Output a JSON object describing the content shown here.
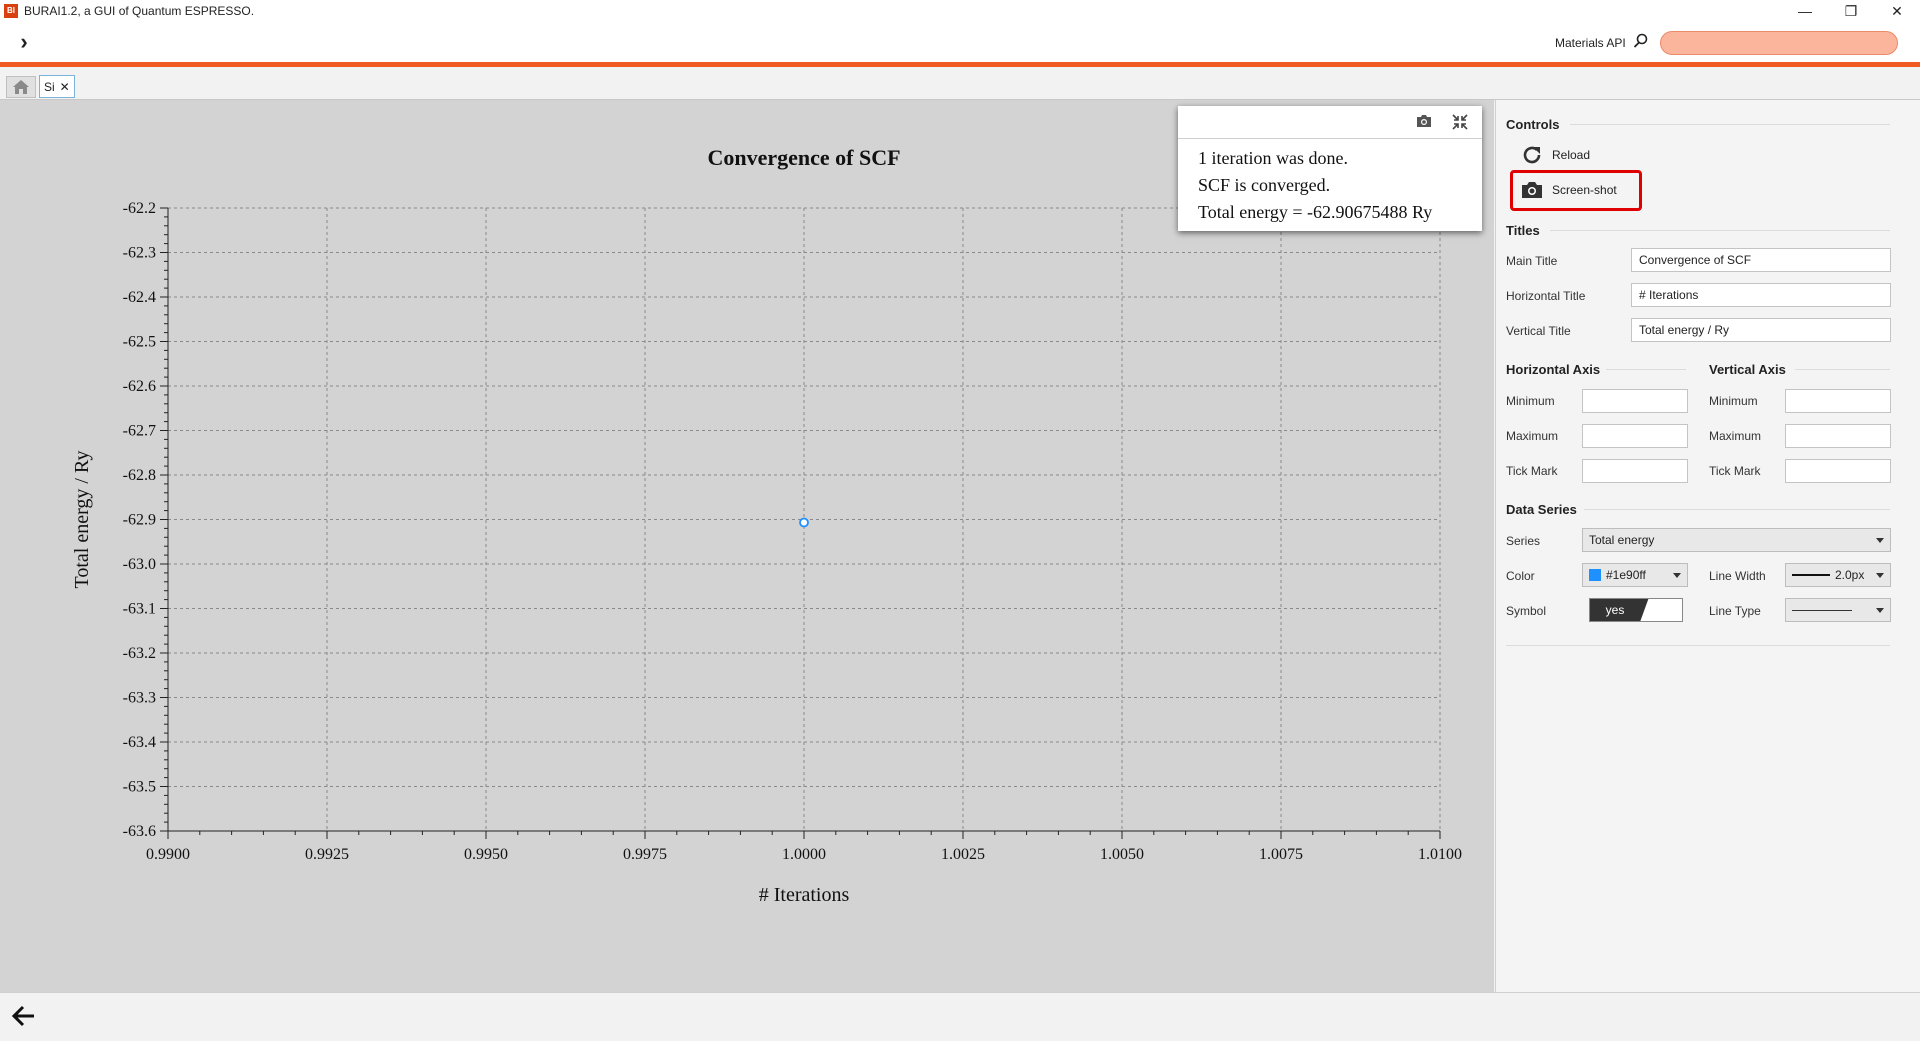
{
  "window": {
    "title": "BURAI1.2, a GUI of Quantum ESPRESSO.",
    "icon_text": "BI",
    "minimize": "—",
    "restore": "❐",
    "close": "✕"
  },
  "toolbar": {
    "toggle_glyph": "›",
    "materials_api_label": "Materials API",
    "materials_api_search_value": ""
  },
  "tabs": [
    {
      "label": "Si",
      "close": "✕"
    }
  ],
  "popup": {
    "lines": [
      "1 iteration was done.",
      "SCF is converged.",
      "Total energy = -62.90675488 Ry"
    ]
  },
  "chart_data": {
    "type": "scatter",
    "title": "Convergence of SCF",
    "xlabel": "# Iterations",
    "ylabel": "Total energy / Ry",
    "xlim": [
      0.99,
      1.01
    ],
    "ylim": [
      -63.6,
      -62.2
    ],
    "x_ticks": [
      "0.9900",
      "0.9925",
      "0.9950",
      "0.9975",
      "1.0000",
      "1.0025",
      "1.0050",
      "1.0075",
      "1.0100"
    ],
    "y_ticks": [
      "-62.2",
      "-62.3",
      "-62.4",
      "-62.5",
      "-62.6",
      "-62.7",
      "-62.8",
      "-62.9",
      "-63.0",
      "-63.1",
      "-63.2",
      "-63.3",
      "-63.4",
      "-63.5",
      "-63.6"
    ],
    "grid": true,
    "series": [
      {
        "name": "Total energy",
        "color": "#1e90ff",
        "points": [
          {
            "x": 1.0,
            "y": -62.90675488
          }
        ]
      }
    ]
  },
  "side": {
    "controls_title": "Controls",
    "reload_label": "Reload",
    "screenshot_label": "Screen-shot",
    "titles_title": "Titles",
    "main_title_label": "Main Title",
    "main_title_value": "Convergence of SCF",
    "horizontal_title_label": "Horizontal Title",
    "horizontal_title_value": "# Iterations",
    "vertical_title_label": "Vertical Title",
    "vertical_title_value": "Total energy / Ry",
    "haxis_title": "Horizontal Axis",
    "vaxis_title": "Vertical Axis",
    "minimum_label": "Minimum",
    "maximum_label": "Maximum",
    "tickmark_label": "Tick Mark",
    "h_min": "",
    "h_max": "",
    "h_tick": "",
    "v_min": "",
    "v_max": "",
    "v_tick": "",
    "data_series_title": "Data Series",
    "series_label": "Series",
    "series_value": "Total energy",
    "color_label": "Color",
    "color_value": "#1e90ff",
    "color_display": "#1e90ff",
    "line_width_label": "Line Width",
    "line_width_value": "2.0px",
    "symbol_label": "Symbol",
    "symbol_value": "yes",
    "line_type_label": "Line Type"
  }
}
